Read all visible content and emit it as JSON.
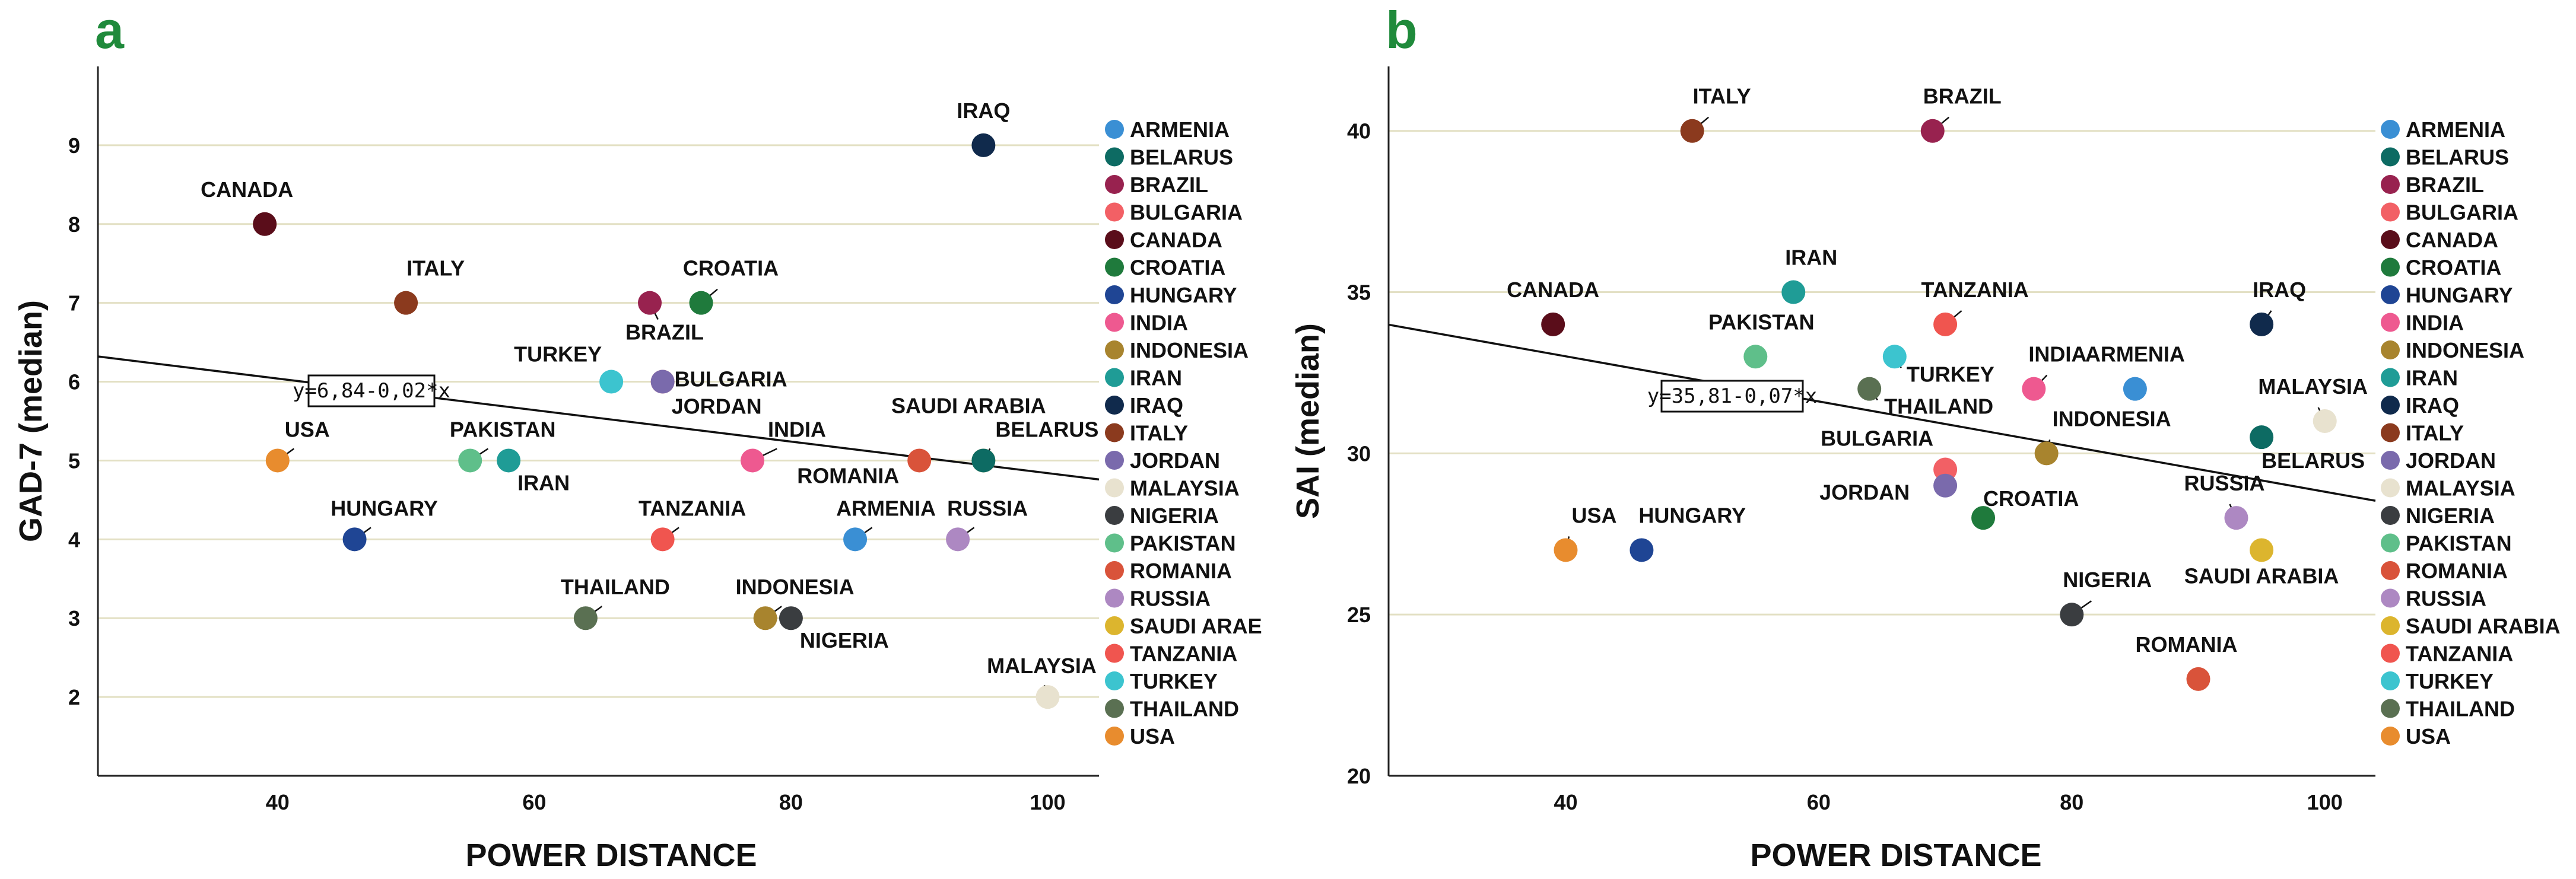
{
  "panels": [
    {
      "letter": "a"
    },
    {
      "letter": "b"
    }
  ],
  "chart_data": [
    {
      "type": "scatter",
      "panel": "a",
      "xlabel": "POWER DISTANCE",
      "ylabel": "GAD-7 (median)",
      "xlim": [
        26,
        104
      ],
      "ylim": [
        1,
        10
      ],
      "xticks": [
        40,
        60,
        80,
        100
      ],
      "yticks": [
        2,
        3,
        4,
        5,
        6,
        7,
        8,
        9
      ],
      "grid": "horizontal",
      "regression": {
        "intercept": 6.84,
        "slope": -0.02,
        "label": "y=6,84-0,02*x"
      },
      "points": [
        {
          "name": "IRAQ",
          "x": 95,
          "y": 9,
          "color": "#102a4c"
        },
        {
          "name": "CANADA",
          "x": 39,
          "y": 8,
          "color": "#5a0d1a"
        },
        {
          "name": "ITALY",
          "x": 50,
          "y": 7,
          "color": "#8b3a1e"
        },
        {
          "name": "BRAZIL",
          "x": 69,
          "y": 7,
          "color": "#98224f"
        },
        {
          "name": "CROATIA",
          "x": 73,
          "y": 7,
          "color": "#1f7a3c"
        },
        {
          "name": "TURKEY",
          "x": 66,
          "y": 6,
          "color": "#3cc4cf"
        },
        {
          "name": "BULGARIA",
          "x": 70,
          "y": 6,
          "color": "#f26065"
        },
        {
          "name": "JORDAN",
          "x": 70,
          "y": 6,
          "color": "#7a6aac"
        },
        {
          "name": "USA",
          "x": 40,
          "y": 5,
          "color": "#e88c2e"
        },
        {
          "name": "PAKISTAN",
          "x": 55,
          "y": 5,
          "color": "#5fbf8a"
        },
        {
          "name": "IRAN",
          "x": 58,
          "y": 5,
          "color": "#1f9c96"
        },
        {
          "name": "INDIA",
          "x": 77,
          "y": 5,
          "color": "#ee5990"
        },
        {
          "name": "ROMANIA",
          "x": 90,
          "y": 5,
          "color": "#d9533a"
        },
        {
          "name": "SAUDI ARABIA",
          "x": 95,
          "y": 5,
          "color": "#dcb52e"
        },
        {
          "name": "BELARUS",
          "x": 95,
          "y": 5,
          "color": "#0d6b63"
        },
        {
          "name": "HUNGARY",
          "x": 46,
          "y": 4,
          "color": "#1f4594"
        },
        {
          "name": "TANZANIA",
          "x": 70,
          "y": 4,
          "color": "#f0554f"
        },
        {
          "name": "ARMENIA",
          "x": 85,
          "y": 4,
          "color": "#3a8fd4"
        },
        {
          "name": "RUSSIA",
          "x": 93,
          "y": 4,
          "color": "#ad88c2"
        },
        {
          "name": "THAILAND",
          "x": 64,
          "y": 3,
          "color": "#5a7052"
        },
        {
          "name": "INDONESIA",
          "x": 78,
          "y": 3,
          "color": "#a8842e"
        },
        {
          "name": "NIGERIA",
          "x": 80,
          "y": 3,
          "color": "#3a3d40"
        },
        {
          "name": "MALAYSIA",
          "x": 100,
          "y": 2,
          "color": "#e8e2cf"
        }
      ],
      "legend": [
        {
          "label": "ARMENIA",
          "color": "#3a8fd4"
        },
        {
          "label": "BELARUS",
          "color": "#0d6b63"
        },
        {
          "label": "BRAZIL",
          "color": "#98224f"
        },
        {
          "label": "BULGARIA",
          "color": "#f26065"
        },
        {
          "label": "CANADA",
          "color": "#5a0d1a"
        },
        {
          "label": "CROATIA",
          "color": "#1f7a3c"
        },
        {
          "label": "HUNGARY",
          "color": "#1f4594"
        },
        {
          "label": "INDIA",
          "color": "#ee5990"
        },
        {
          "label": "INDONESIA",
          "color": "#a8842e"
        },
        {
          "label": "IRAN",
          "color": "#1f9c96"
        },
        {
          "label": "IRAQ",
          "color": "#102a4c"
        },
        {
          "label": "ITALY",
          "color": "#8b3a1e"
        },
        {
          "label": "JORDAN",
          "color": "#7a6aac"
        },
        {
          "label": "MALAYSIA",
          "color": "#e8e2cf"
        },
        {
          "label": "NIGERIA",
          "color": "#3a3d40"
        },
        {
          "label": "PAKISTAN",
          "color": "#5fbf8a"
        },
        {
          "label": "ROMANIA",
          "color": "#d9533a"
        },
        {
          "label": "RUSSIA",
          "color": "#ad88c2"
        },
        {
          "label": "SAUDI ARAE",
          "color": "#dcb52e"
        },
        {
          "label": "TANZANIA",
          "color": "#f0554f"
        },
        {
          "label": "TURKEY",
          "color": "#3cc4cf"
        },
        {
          "label": "THAILAND",
          "color": "#5a7052"
        },
        {
          "label": "USA",
          "color": "#e88c2e"
        }
      ]
    },
    {
      "type": "scatter",
      "panel": "b",
      "xlabel": "POWER DISTANCE",
      "ylabel": "SAI (median)",
      "xlim": [
        26,
        104
      ],
      "ylim": [
        20,
        42
      ],
      "xticks": [
        40,
        60,
        80,
        100
      ],
      "yticks": [
        20,
        25,
        30,
        35,
        40
      ],
      "grid": "horizontal",
      "regression": {
        "intercept": 35.81,
        "slope": -0.07,
        "label": "y=35,81-0,07*x"
      },
      "points": [
        {
          "name": "ITALY",
          "x": 50,
          "y": 40,
          "color": "#8b3a1e"
        },
        {
          "name": "BRAZIL",
          "x": 69,
          "y": 40,
          "color": "#98224f"
        },
        {
          "name": "IRAN",
          "x": 58,
          "y": 35,
          "color": "#1f9c96"
        },
        {
          "name": "CANADA",
          "x": 39,
          "y": 34,
          "color": "#5a0d1a"
        },
        {
          "name": "TANZANIA",
          "x": 70,
          "y": 34,
          "color": "#f0554f"
        },
        {
          "name": "IRAQ",
          "x": 95,
          "y": 34,
          "color": "#102a4c"
        },
        {
          "name": "PAKISTAN",
          "x": 55,
          "y": 33,
          "color": "#5fbf8a"
        },
        {
          "name": "TURKEY",
          "x": 66,
          "y": 33,
          "color": "#3cc4cf"
        },
        {
          "name": "INDIA",
          "x": 77,
          "y": 32,
          "color": "#ee5990"
        },
        {
          "name": "ARMENIA",
          "x": 85,
          "y": 32,
          "color": "#3a8fd4"
        },
        {
          "name": "THAILAND",
          "x": 64,
          "y": 32,
          "color": "#5a7052"
        },
        {
          "name": "MALAYSIA",
          "x": 100,
          "y": 31,
          "color": "#e8e2cf"
        },
        {
          "name": "BELARUS",
          "x": 95,
          "y": 30.5,
          "color": "#0d6b63"
        },
        {
          "name": "INDONESIA",
          "x": 78,
          "y": 30,
          "color": "#a8842e"
        },
        {
          "name": "BULGARIA",
          "x": 70,
          "y": 29.5,
          "color": "#f26065"
        },
        {
          "name": "JORDAN",
          "x": 70,
          "y": 29,
          "color": "#7a6aac"
        },
        {
          "name": "CROATIA",
          "x": 73,
          "y": 28,
          "color": "#1f7a3c"
        },
        {
          "name": "RUSSIA",
          "x": 93,
          "y": 28,
          "color": "#ad88c2"
        },
        {
          "name": "USA",
          "x": 40,
          "y": 27,
          "color": "#e88c2e"
        },
        {
          "name": "HUNGARY",
          "x": 46,
          "y": 27,
          "color": "#1f4594"
        },
        {
          "name": "SAUDI ARABIA",
          "x": 95,
          "y": 27,
          "color": "#dcb52e"
        },
        {
          "name": "NIGERIA",
          "x": 80,
          "y": 25,
          "color": "#3a3d40"
        },
        {
          "name": "ROMANIA",
          "x": 90,
          "y": 23,
          "color": "#d9533a"
        }
      ],
      "legend": [
        {
          "label": "ARMENIA",
          "color": "#3a8fd4"
        },
        {
          "label": "BELARUS",
          "color": "#0d6b63"
        },
        {
          "label": "BRAZIL",
          "color": "#98224f"
        },
        {
          "label": "BULGARIA",
          "color": "#f26065"
        },
        {
          "label": "CANADA",
          "color": "#5a0d1a"
        },
        {
          "label": "CROATIA",
          "color": "#1f7a3c"
        },
        {
          "label": "HUNGARY",
          "color": "#1f4594"
        },
        {
          "label": "INDIA",
          "color": "#ee5990"
        },
        {
          "label": "INDONESIA",
          "color": "#a8842e"
        },
        {
          "label": "IRAN",
          "color": "#1f9c96"
        },
        {
          "label": "IRAQ",
          "color": "#102a4c"
        },
        {
          "label": "ITALY",
          "color": "#8b3a1e"
        },
        {
          "label": "JORDAN",
          "color": "#7a6aac"
        },
        {
          "label": "MALAYSIA",
          "color": "#e8e2cf"
        },
        {
          "label": "NIGERIA",
          "color": "#3a3d40"
        },
        {
          "label": "PAKISTAN",
          "color": "#5fbf8a"
        },
        {
          "label": "ROMANIA",
          "color": "#d9533a"
        },
        {
          "label": "RUSSIA",
          "color": "#ad88c2"
        },
        {
          "label": "SAUDI ARABIA",
          "color": "#dcb52e"
        },
        {
          "label": "TANZANIA",
          "color": "#f0554f"
        },
        {
          "label": "TURKEY",
          "color": "#3cc4cf"
        },
        {
          "label": "THAILAND",
          "color": "#5a7052"
        },
        {
          "label": "USA",
          "color": "#e88c2e"
        }
      ]
    }
  ]
}
